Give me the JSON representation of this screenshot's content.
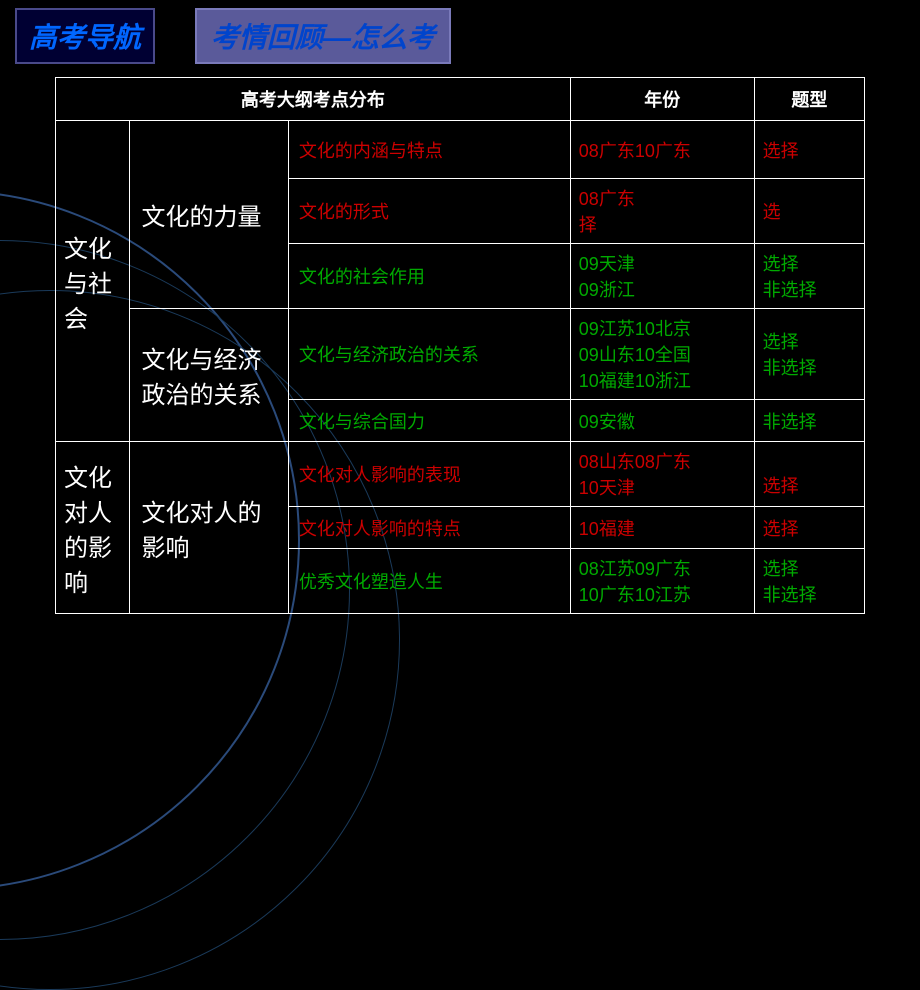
{
  "header": {
    "nav_title": "高考导航",
    "subtitle": "考情回顾—怎么考"
  },
  "table": {
    "header_main": "高考大纲考点分布",
    "header_year": "年份",
    "header_type": "题型",
    "rows": [
      {
        "cat1": "文化与社会",
        "cat2": "文化的力量",
        "topic": "文化的内涵与特点",
        "year": "08广东10广东",
        "type": "选择",
        "topic_color": "red-text",
        "year_color": "red-text",
        "type_color": "red-text"
      },
      {
        "topic": "文化的形式",
        "year": "08广东\n择",
        "type": "选",
        "topic_color": "red-text",
        "year_color": "red-text",
        "type_color": "red-text"
      },
      {
        "topic": "文化的社会作用",
        "year": "09天津\n09浙江",
        "type": "选择\n非选择",
        "topic_color": "green-text",
        "year_color": "green-text",
        "type_color": "green-text"
      },
      {
        "cat2": "文化与经济政治的关系",
        "topic": "文化与经济政治的关系",
        "year": "09江苏10北京\n09山东10全国\n10福建10浙江",
        "type": "选择\n非选择",
        "topic_color": "green-text",
        "year_color": "green-text",
        "type_color": "green-text"
      },
      {
        "topic": "文化与综合国力",
        "year": "09安徽",
        "type": "非选择",
        "topic_color": "green-text",
        "year_color": "green-text",
        "type_color": "green-text"
      },
      {
        "cat1": "文化对人的影响",
        "cat2": "文化对人的影响",
        "topic": "文化对人影响的表现",
        "year": "08山东08广东\n10天津",
        "type": "\n选择",
        "topic_color": "red-text",
        "year_color": "red-text",
        "type_color": "red-text"
      },
      {
        "topic": "文化对人影响的特点",
        "year": "10福建",
        "type": "选择",
        "topic_color": "red-text",
        "year_color": "red-text",
        "type_color": "red-text"
      },
      {
        "topic": "优秀文化塑造人生",
        "year": "08江苏09广东\n10广东10江苏",
        "type": "选择\n非选择",
        "topic_color": "green-text",
        "year_color": "green-text",
        "type_color": "green-text"
      }
    ]
  }
}
